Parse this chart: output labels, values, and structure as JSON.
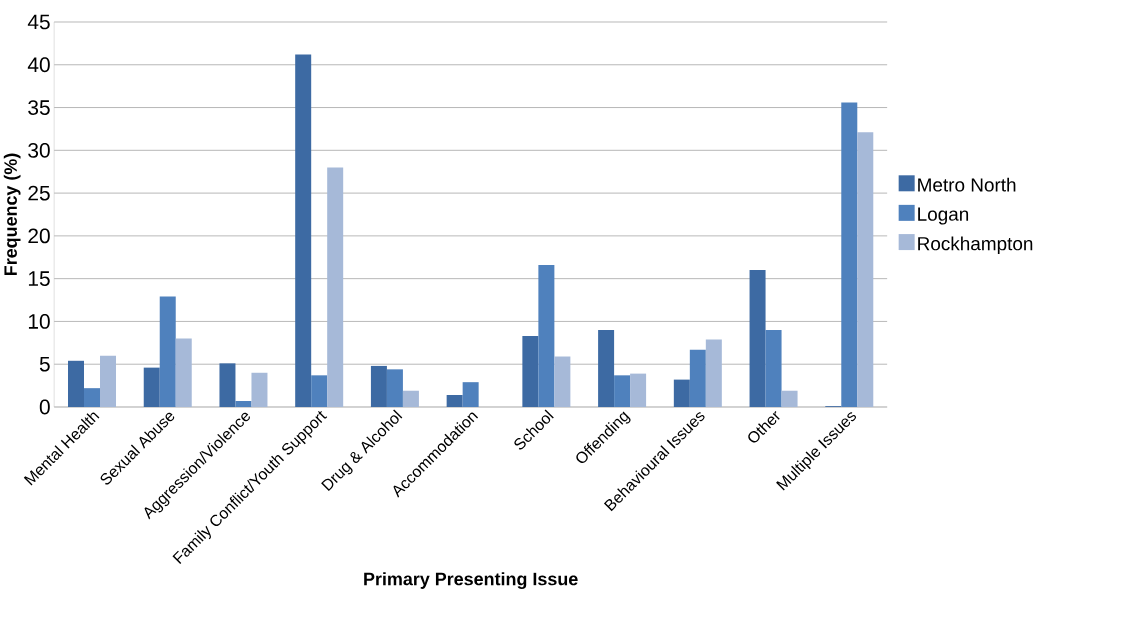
{
  "chart_data": {
    "type": "bar",
    "xlabel": "Primary Presenting Issue",
    "ylabel": "Frequency (%)",
    "categories": [
      "Mental Health",
      "Sexual Abuse",
      "Aggression/Violence",
      "Family Conflict/Youth Support",
      "Drug & Alcohol",
      "Accommodation",
      "School",
      "Offending",
      "Behavioural Issues",
      "Other",
      "Multiple Issues"
    ],
    "series": [
      {
        "name": "Metro North",
        "color": "#3d6aa3",
        "values": [
          5.4,
          4.6,
          5.1,
          41.2,
          4.8,
          1.4,
          8.3,
          9.0,
          3.2,
          16.0,
          0.1
        ]
      },
      {
        "name": "Logan",
        "color": "#4f81bd",
        "values": [
          2.2,
          12.9,
          0.7,
          3.7,
          4.4,
          2.9,
          16.6,
          3.7,
          6.7,
          9.0,
          35.6
        ]
      },
      {
        "name": "Rockhampton",
        "color": "#a6b9d8",
        "values": [
          6.0,
          8.0,
          4.0,
          28.0,
          1.9,
          0,
          5.9,
          3.9,
          7.9,
          1.9,
          32.1
        ]
      }
    ],
    "ylim": [
      0,
      45
    ],
    "yticks": [
      0,
      5,
      10,
      15,
      20,
      25,
      30,
      35,
      40,
      45
    ],
    "grid": "y",
    "legend": "right"
  }
}
